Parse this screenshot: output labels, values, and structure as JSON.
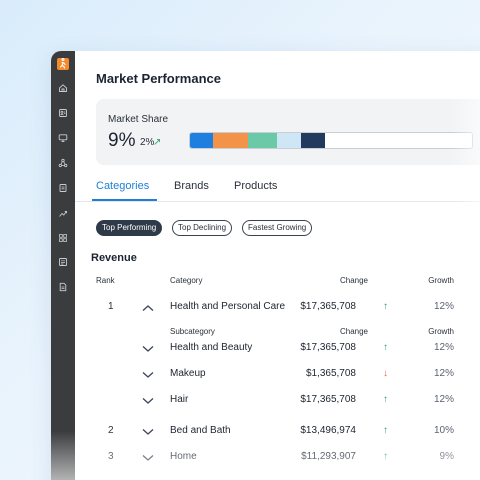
{
  "sidebar": {
    "logo_icon": "runner-logo-icon",
    "items": [
      {
        "icon": "home-icon"
      },
      {
        "icon": "contacts-icon"
      },
      {
        "icon": "monitor-icon"
      },
      {
        "icon": "network-icon"
      },
      {
        "icon": "briefcase-icon"
      },
      {
        "icon": "trend-chart-icon"
      },
      {
        "icon": "grid-icon"
      },
      {
        "icon": "list-icon"
      },
      {
        "icon": "document-icon"
      }
    ]
  },
  "header": {
    "title": "Market Performance"
  },
  "market_share": {
    "label": "Market Share",
    "value": "9%",
    "change": "2%",
    "change_direction": "up",
    "segments": [
      {
        "share": 0.08,
        "color": "#1f7fe0"
      },
      {
        "share": 0.125,
        "color": "#f39249"
      },
      {
        "share": 0.105,
        "color": "#6cc9a8"
      },
      {
        "share": 0.085,
        "color": "#cfe6f7"
      },
      {
        "share": 0.085,
        "color": "#223a5e"
      }
    ]
  },
  "tabs": [
    {
      "label": "Categories",
      "active": true
    },
    {
      "label": "Brands",
      "active": false
    },
    {
      "label": "Products",
      "active": false
    }
  ],
  "filters": [
    {
      "label": "Top Performing",
      "active": true
    },
    {
      "label": "Top Declining",
      "active": false
    },
    {
      "label": "Fastest Growing",
      "active": false
    }
  ],
  "table": {
    "section_title": "Revenue",
    "headers": {
      "rank": "Rank",
      "category": "Category",
      "change": "Change",
      "growth": "Growth"
    },
    "sub_headers": {
      "category": "Subcategory",
      "change": "Change",
      "growth": "Growth"
    },
    "rows": [
      {
        "rank": "1",
        "name": "Health and Personal Care",
        "change": "$17,365,708",
        "direction": "up",
        "growth": "12%",
        "expanded": true
      },
      {
        "rank": "",
        "name": "Health and Beauty",
        "change": "$17,365,708",
        "direction": "up",
        "growth": "12%",
        "sub": true
      },
      {
        "rank": "",
        "name": "Makeup",
        "change": "$1,365,708",
        "direction": "down",
        "growth": "12%",
        "sub": true
      },
      {
        "rank": "",
        "name": "Hair",
        "change": "$17,365,708",
        "direction": "up",
        "growth": "12%",
        "sub": true
      },
      {
        "rank": "2",
        "name": "Bed and Bath",
        "change": "$13,496,974",
        "direction": "up",
        "growth": "10%"
      },
      {
        "rank": "3",
        "name": "Home",
        "change": "$11,293,907",
        "direction": "up",
        "growth": "9%"
      }
    ]
  },
  "colors": {
    "accent": "#1f7fd6",
    "up": "#2aa36b",
    "down": "#e2674a"
  }
}
